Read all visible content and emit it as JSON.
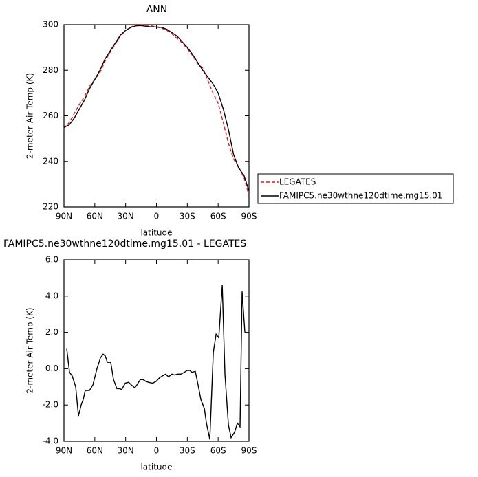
{
  "chart_data": [
    {
      "type": "line",
      "title": "ANN",
      "x_label": "latitude",
      "y_label": "2-meter Air Temp (K)",
      "xlim": [
        90,
        -90
      ],
      "xticks": [
        {
          "value": 90,
          "label": "90N"
        },
        {
          "value": 60,
          "label": "60N"
        },
        {
          "value": 30,
          "label": "30N"
        },
        0,
        {
          "value": -30,
          "label": "30S"
        },
        {
          "value": -60,
          "label": "60S"
        },
        {
          "value": -90,
          "label": "90S"
        }
      ],
      "ylim": [
        220,
        300
      ],
      "yticks": [
        220,
        240,
        260,
        280,
        300
      ],
      "legend": "right",
      "x": [
        90,
        85,
        80,
        75,
        70,
        65,
        60,
        55,
        50,
        45,
        40,
        35,
        30,
        25,
        20,
        15,
        10,
        5,
        0,
        -5,
        -10,
        -15,
        -20,
        -25,
        -30,
        -35,
        -40,
        -45,
        -50,
        -55,
        -60,
        -65,
        -70,
        -75,
        -80,
        -85,
        -90
      ],
      "series": [
        {
          "name": "LEGATES",
          "color": "#e8151f",
          "dash": true,
          "values": [
            254.5,
            257,
            261,
            265,
            268.5,
            273,
            276,
            279,
            284,
            288,
            291.5,
            295,
            297.5,
            299,
            300,
            300,
            299.8,
            299.5,
            299,
            298.5,
            297.5,
            296,
            294,
            292,
            289.5,
            286.5,
            283,
            281,
            275.5,
            270,
            265.5,
            257,
            248,
            241,
            237.5,
            233,
            225
          ]
        },
        {
          "name": "FAMIPC5.ne30wthne120dtime.mg15.01",
          "color": "#000000",
          "dash": false,
          "values": [
            255,
            256,
            259,
            263,
            267,
            272,
            276,
            280,
            285,
            288.5,
            292,
            295.5,
            297.5,
            298.8,
            299.5,
            299.6,
            299.3,
            299,
            299,
            298.8,
            298,
            296.5,
            295,
            292.5,
            290,
            287,
            283.5,
            280,
            277,
            274,
            270,
            263,
            254,
            243,
            237,
            234,
            227
          ]
        }
      ]
    },
    {
      "type": "line",
      "title": "FAMIPC5.ne30wthne120dtime.mg15.01 - LEGATES",
      "x_label": "latitude",
      "y_label": "2-meter Air Temp (K)",
      "xlim": [
        90,
        -90
      ],
      "xticks": [
        {
          "value": 90,
          "label": "90N"
        },
        {
          "value": 60,
          "label": "60N"
        },
        {
          "value": 30,
          "label": "30N"
        },
        0,
        {
          "value": -30,
          "label": "30S"
        },
        {
          "value": -60,
          "label": "60S"
        },
        {
          "value": -90,
          "label": "90S"
        }
      ],
      "ylim": [
        -4,
        6
      ],
      "yticks": [
        {
          "value": -4,
          "label": "-4.0"
        },
        {
          "value": -2,
          "label": "-2.0"
        },
        {
          "value": 0,
          "label": "0.0"
        },
        {
          "value": 2,
          "label": "2.0"
        },
        {
          "value": 4,
          "label": "4.0"
        },
        {
          "value": 6,
          "label": "6.0"
        }
      ],
      "x": [
        87.3,
        84.6,
        82,
        78.6,
        75.9,
        73.3,
        71.3,
        69.3,
        65.2,
        61.9,
        57.9,
        54.5,
        51.9,
        49.8,
        47.8,
        44.5,
        41.8,
        38.5,
        35.8,
        33.8,
        30.4,
        27.1,
        24.4,
        21.1,
        19.1,
        15.7,
        13,
        10.4,
        7.7,
        3.7,
        0.4,
        -3,
        -5.7,
        -9,
        -11.7,
        -15,
        -17.7,
        -20.4,
        -23.7,
        -27.1,
        -29.8,
        -32.5,
        -34.5,
        -37.8,
        -40.5,
        -43.2,
        -46.6,
        -48.6,
        -51.9,
        -55.3,
        -58,
        -60.6,
        -64,
        -66.6,
        -70,
        -72.6,
        -76,
        -78.7,
        -81.3,
        -83.3,
        -86
      ],
      "series": [
        {
          "name": "FAMIPC5.ne30wthne120dtime.mg15.01 - LEGATES",
          "color": "#000000",
          "dash": false,
          "values": [
            1.1,
            -0.2,
            -0.4,
            -1,
            -2.6,
            -2,
            -1.7,
            -1.2,
            -1.2,
            -0.9,
            0,
            0.6,
            0.8,
            0.7,
            0.35,
            0.35,
            -0.6,
            -1.1,
            -1.1,
            -1.15,
            -0.8,
            -0.75,
            -0.9,
            -1.05,
            -0.9,
            -0.6,
            -0.6,
            -0.7,
            -0.75,
            -0.8,
            -0.7,
            -0.5,
            -0.4,
            -0.3,
            -0.45,
            -0.3,
            -0.35,
            -0.3,
            -0.3,
            -0.2,
            -0.1,
            -0.1,
            -0.2,
            -0.15,
            -0.9,
            -1.7,
            -2.2,
            -3,
            -3.9,
            0.9,
            1.9,
            1.7,
            4.6,
            -0.3,
            -3.1,
            -3.8,
            -3.5,
            -3,
            -3.2,
            4.25,
            2
          ]
        }
      ]
    }
  ]
}
